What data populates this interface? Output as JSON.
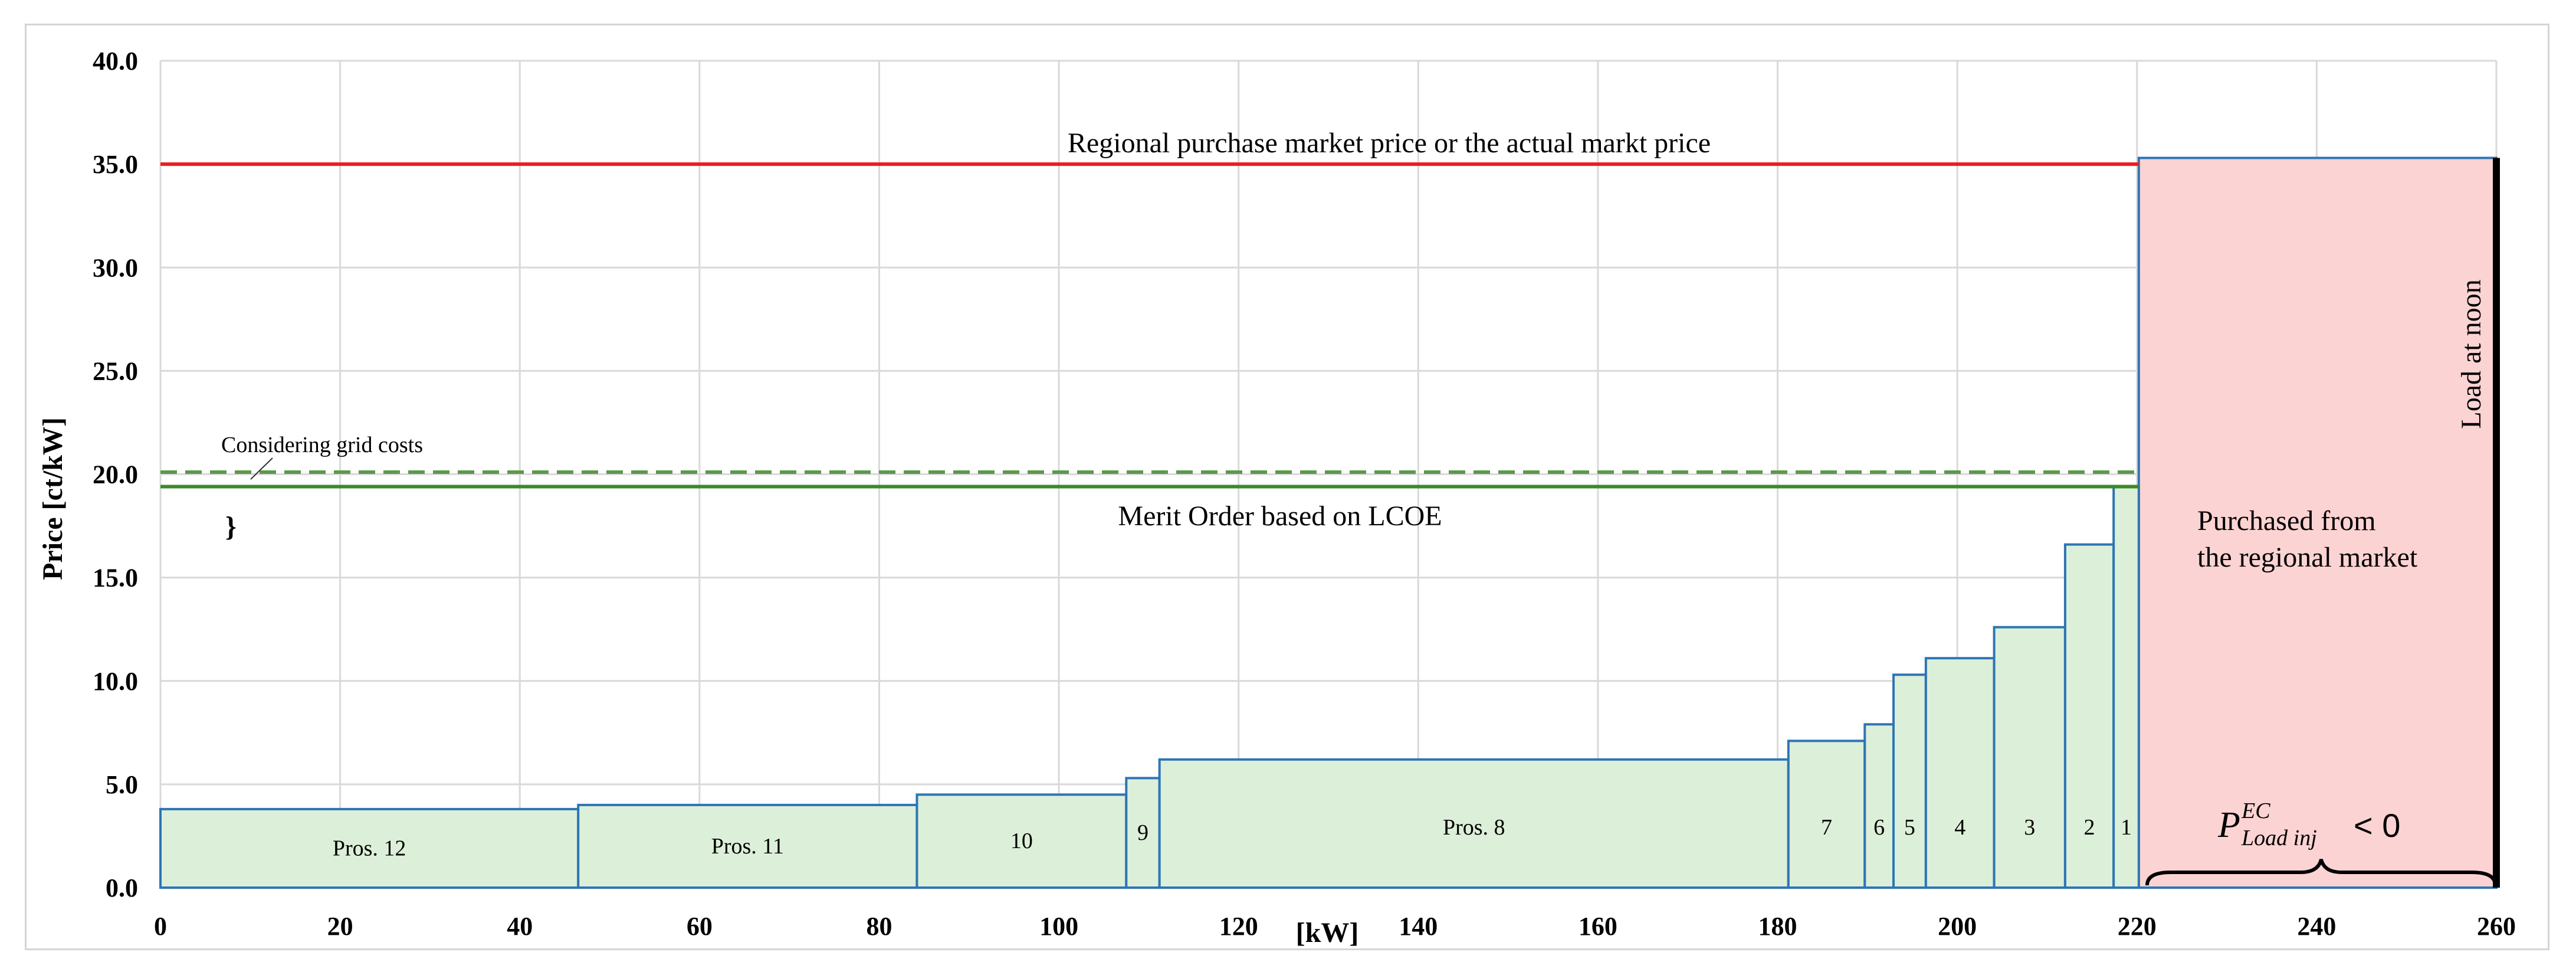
{
  "chart_data": {
    "type": "bar",
    "title": "",
    "xlabel": "[kW]",
    "ylabel": "Price [ct/kW]",
    "xlim": [
      0,
      260
    ],
    "ylim": [
      0,
      40
    ],
    "x_ticks": [
      "0",
      "20",
      "40",
      "60",
      "80",
      "100",
      "120",
      "140",
      "160",
      "180",
      "200",
      "220",
      "240",
      "260"
    ],
    "y_ticks": [
      "0.0",
      "5.0",
      "10.0",
      "15.0",
      "20.0",
      "25.0",
      "30.0",
      "35.0",
      "40.0"
    ],
    "grid": true,
    "bars": [
      {
        "label": "Pros. 12",
        "x0": 0,
        "x1": 46.5,
        "value": 3.8
      },
      {
        "label": "Pros. 11",
        "x0": 46.5,
        "x1": 84.2,
        "value": 4.0
      },
      {
        "label": "10",
        "x0": 84.2,
        "x1": 107.5,
        "value": 4.5
      },
      {
        "label": "9",
        "x0": 107.5,
        "x1": 111.2,
        "value": 5.3
      },
      {
        "label": "Pros. 8",
        "x0": 111.2,
        "x1": 181.2,
        "value": 6.2
      },
      {
        "label": "7",
        "x0": 181.2,
        "x1": 189.7,
        "value": 7.1
      },
      {
        "label": "6",
        "x0": 189.7,
        "x1": 192.9,
        "value": 7.9
      },
      {
        "label": "5",
        "x0": 192.9,
        "x1": 196.5,
        "value": 10.3
      },
      {
        "label": "4",
        "x0": 196.5,
        "x1": 204.1,
        "value": 11.1
      },
      {
        "label": "3",
        "x0": 204.1,
        "x1": 212.0,
        "value": 12.6
      },
      {
        "label": "2",
        "x0": 212.0,
        "x1": 217.4,
        "value": 16.6
      },
      {
        "label": "1",
        "x0": 217.4,
        "x1": 220.2,
        "value": 19.4
      }
    ],
    "purchased_block": {
      "label_line1": "Purchased from",
      "label_line2": "the regional market",
      "x0": 220.2,
      "x1": 260,
      "value": 35.3
    },
    "lines": [
      {
        "name": "market_price",
        "value": 35.0,
        "x0": 0,
        "x1": 220.2,
        "color": "#ee1c1c",
        "style": "solid"
      },
      {
        "name": "grid_costs",
        "value": 20.1,
        "x0": 0,
        "x1": 220.2,
        "color": "#5a9a4a",
        "style": "dashed"
      },
      {
        "name": "merit_order",
        "value": 19.4,
        "x0": 0,
        "x1": 220.2,
        "color": "#3a8a2a",
        "style": "solid"
      }
    ],
    "load_line": {
      "x": 260,
      "y0": 0,
      "y1": 35.3,
      "color": "#000000"
    },
    "annotations": {
      "market_price": "Regional purchase market price or the actual markt price",
      "grid_costs": "Considering grid costs",
      "merit_order": "Merit Order based on LCOE",
      "load_at_noon": "Load at noon",
      "inj_symbol": "P",
      "inj_sup": "EC",
      "inj_sub": "Load inj",
      "inj_rel": "< 0",
      "brace_glyph": "}"
    },
    "colors": {
      "bar_fill": "#dcefd8",
      "bar_stroke": "#2e75b6",
      "purchased_fill": "#fcd3d3",
      "grid": "#d9d9d9"
    }
  }
}
